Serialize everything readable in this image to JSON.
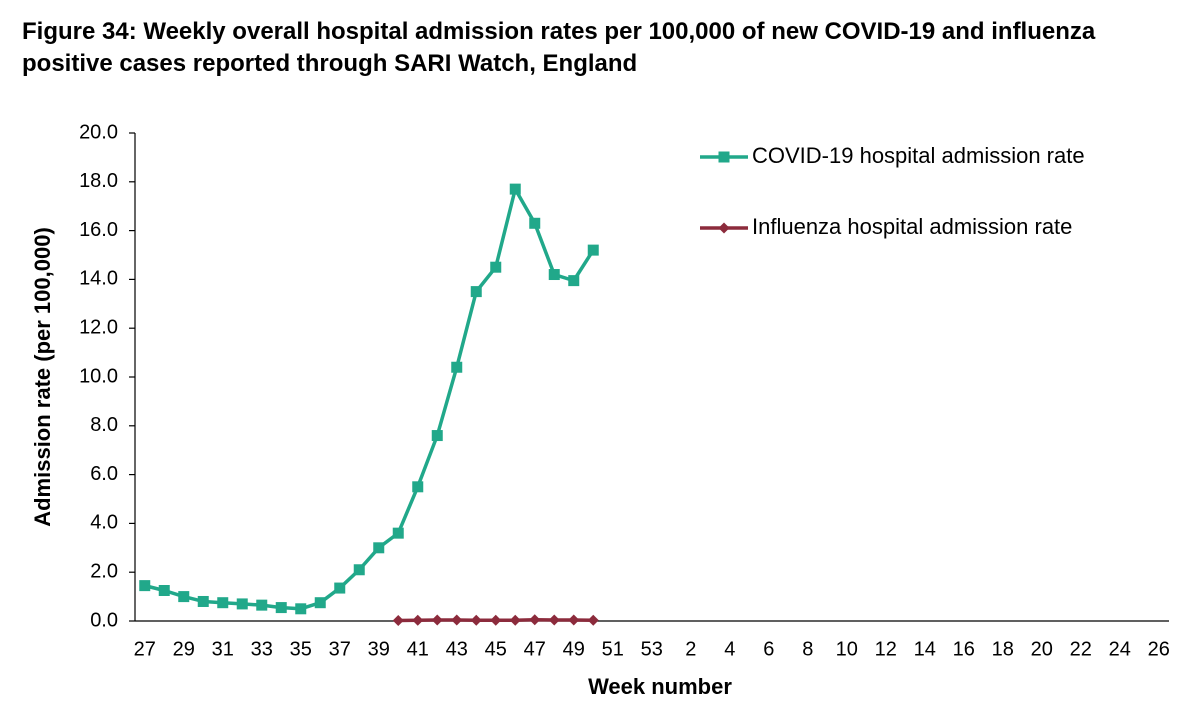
{
  "chart_data": {
    "type": "line",
    "title": "Figure 34: Weekly overall hospital admission rates per 100,000 of new COVID-19 and influenza positive cases reported through SARI Watch, England",
    "x_label": "Week number",
    "y_label": "Admission rate (per 100,000)",
    "categories": [
      "27",
      null,
      "29",
      null,
      "31",
      null,
      "33",
      null,
      "35",
      null,
      "37",
      null,
      "39",
      null,
      "41",
      null,
      "43",
      null,
      "45",
      null,
      "47",
      null,
      "49",
      null,
      "51",
      null,
      "53",
      null,
      "2",
      null,
      "4",
      null,
      "6",
      null,
      "8",
      null,
      "10",
      null,
      "12",
      null,
      "14",
      null,
      "16",
      null,
      "18",
      null,
      "20",
      null,
      "22",
      null,
      "24",
      null,
      "26"
    ],
    "series": [
      {
        "name": "COVID-19 hospital admission rate",
        "color": "#21a88a",
        "marker": "square",
        "values": [
          1.45,
          1.25,
          1.0,
          0.8,
          0.75,
          0.7,
          0.65,
          0.55,
          0.5,
          0.75,
          1.35,
          2.1,
          3.0,
          3.6,
          5.5,
          7.6,
          10.4,
          13.5,
          14.5,
          17.7,
          16.3,
          14.2,
          13.95,
          15.2,
          null,
          null,
          null,
          null,
          null,
          null,
          null,
          null,
          null,
          null,
          null,
          null,
          null,
          null,
          null,
          null,
          null,
          null,
          null,
          null,
          null,
          null,
          null,
          null,
          null,
          null,
          null,
          null,
          null
        ]
      },
      {
        "name": "Influenza hospital admission rate",
        "color": "#8c2b3c",
        "marker": "diamond",
        "values": [
          null,
          null,
          null,
          null,
          null,
          null,
          null,
          null,
          null,
          null,
          null,
          null,
          null,
          0.02,
          0.03,
          0.04,
          0.04,
          0.03,
          0.03,
          0.03,
          0.05,
          0.04,
          0.04,
          0.03,
          null,
          null,
          null,
          null,
          null,
          null,
          null,
          null,
          null,
          null,
          null,
          null,
          null,
          null,
          null,
          null,
          null,
          null,
          null,
          null,
          null,
          null,
          null,
          null,
          null,
          null,
          null,
          null,
          null
        ]
      }
    ],
    "ylim": [
      0,
      20
    ],
    "yticks": [
      {
        "value": 0,
        "label": "0.0"
      },
      {
        "value": 2,
        "label": "2.0"
      },
      {
        "value": 4,
        "label": "4.0"
      },
      {
        "value": 6,
        "label": "6.0"
      },
      {
        "value": 8,
        "label": "8.0"
      },
      {
        "value": 10,
        "label": "10.0"
      },
      {
        "value": 12,
        "label": "12.0"
      },
      {
        "value": 14,
        "label": "14.0"
      },
      {
        "value": 16,
        "label": "16.0"
      },
      {
        "value": 18,
        "label": "18.0"
      },
      {
        "value": 20,
        "label": "20.0"
      }
    ],
    "grid": false,
    "legend": "top-right"
  }
}
